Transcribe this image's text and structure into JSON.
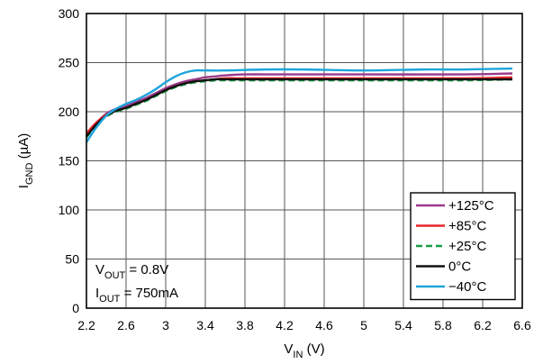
{
  "chart_data": {
    "type": "line",
    "xlabel": {
      "main": "V",
      "sub": "IN",
      "unit": " (V)"
    },
    "ylabel": {
      "main": "I",
      "sub": "GND",
      "unit": " (µA)"
    },
    "xlim": [
      2.2,
      6.6
    ],
    "ylim": [
      0,
      300
    ],
    "xticks": [
      "2.2",
      "2.6",
      "3",
      "3.4",
      "3.8",
      "4.2",
      "4.6",
      "5",
      "5.4",
      "5.8",
      "6.2",
      "6.6"
    ],
    "yticks": [
      "0",
      "50",
      "100",
      "150",
      "200",
      "250",
      "300"
    ],
    "grid": true,
    "legend_position": "bottom-right",
    "annotation": [
      {
        "main": "V",
        "sub": "OUT",
        "rest": " = 0.8V"
      },
      {
        "main": "I",
        "sub": "OUT",
        "rest": " = 750mA"
      }
    ],
    "series": [
      {
        "name": "+125°C",
        "color": "#9b3a8c",
        "dash": "solid",
        "x": [
          2.2,
          2.3,
          2.4,
          2.5,
          2.6,
          2.7,
          2.8,
          2.9,
          3.0,
          3.1,
          3.2,
          3.3,
          3.4,
          3.5,
          3.6,
          3.8,
          4.2,
          5.0,
          6.0,
          6.5
        ],
        "y": [
          175,
          188,
          198,
          203,
          206,
          210,
          214,
          219,
          224,
          228,
          231,
          233,
          235,
          236,
          237,
          238,
          238,
          238,
          238,
          239
        ]
      },
      {
        "name": "+85°C",
        "color": "#e8232a",
        "dash": "solid",
        "x": [
          2.2,
          2.3,
          2.4,
          2.5,
          2.6,
          2.7,
          2.8,
          2.9,
          3.0,
          3.1,
          3.2,
          3.3,
          3.4,
          3.5,
          3.6,
          3.8,
          4.2,
          5.0,
          6.0,
          6.5
        ],
        "y": [
          178,
          189,
          197,
          201,
          204,
          208,
          212,
          217,
          222,
          226,
          229,
          231,
          232,
          233,
          234,
          234,
          234,
          234,
          234,
          235
        ]
      },
      {
        "name": "+25°C",
        "color": "#1a9a48",
        "dash": "dashed",
        "x": [
          2.2,
          2.3,
          2.4,
          2.5,
          2.6,
          2.7,
          2.8,
          2.9,
          3.0,
          3.1,
          3.2,
          3.3,
          3.4,
          3.5,
          3.6,
          3.8,
          4.2,
          5.0,
          6.0,
          6.5
        ],
        "y": [
          174,
          186,
          195,
          200,
          203,
          207,
          211,
          216,
          221,
          225,
          228,
          230,
          231,
          232,
          232,
          232,
          232,
          232,
          232,
          233
        ]
      },
      {
        "name": "0°C",
        "color": "#111111",
        "dash": "solid",
        "x": [
          2.2,
          2.3,
          2.4,
          2.5,
          2.6,
          2.7,
          2.8,
          2.9,
          3.0,
          3.1,
          3.2,
          3.3,
          3.4,
          3.5,
          3.6,
          3.8,
          4.2,
          5.0,
          6.0,
          6.5
        ],
        "y": [
          175,
          187,
          196,
          201,
          204,
          208,
          212,
          217,
          222,
          226,
          229,
          231,
          232,
          233,
          233,
          233,
          233,
          233,
          233,
          233
        ]
      },
      {
        "name": "−40°C",
        "color": "#1ea5dc",
        "dash": "solid",
        "x": [
          2.2,
          2.3,
          2.4,
          2.5,
          2.6,
          2.7,
          2.8,
          2.9,
          3.0,
          3.1,
          3.2,
          3.3,
          3.4,
          3.6,
          4.0,
          4.4,
          5.0,
          5.6,
          6.0,
          6.5
        ],
        "y": [
          169,
          184,
          196,
          203,
          208,
          212,
          217,
          223,
          230,
          236,
          240,
          242,
          242,
          242,
          243,
          243,
          242,
          243,
          243,
          244
        ]
      }
    ]
  }
}
